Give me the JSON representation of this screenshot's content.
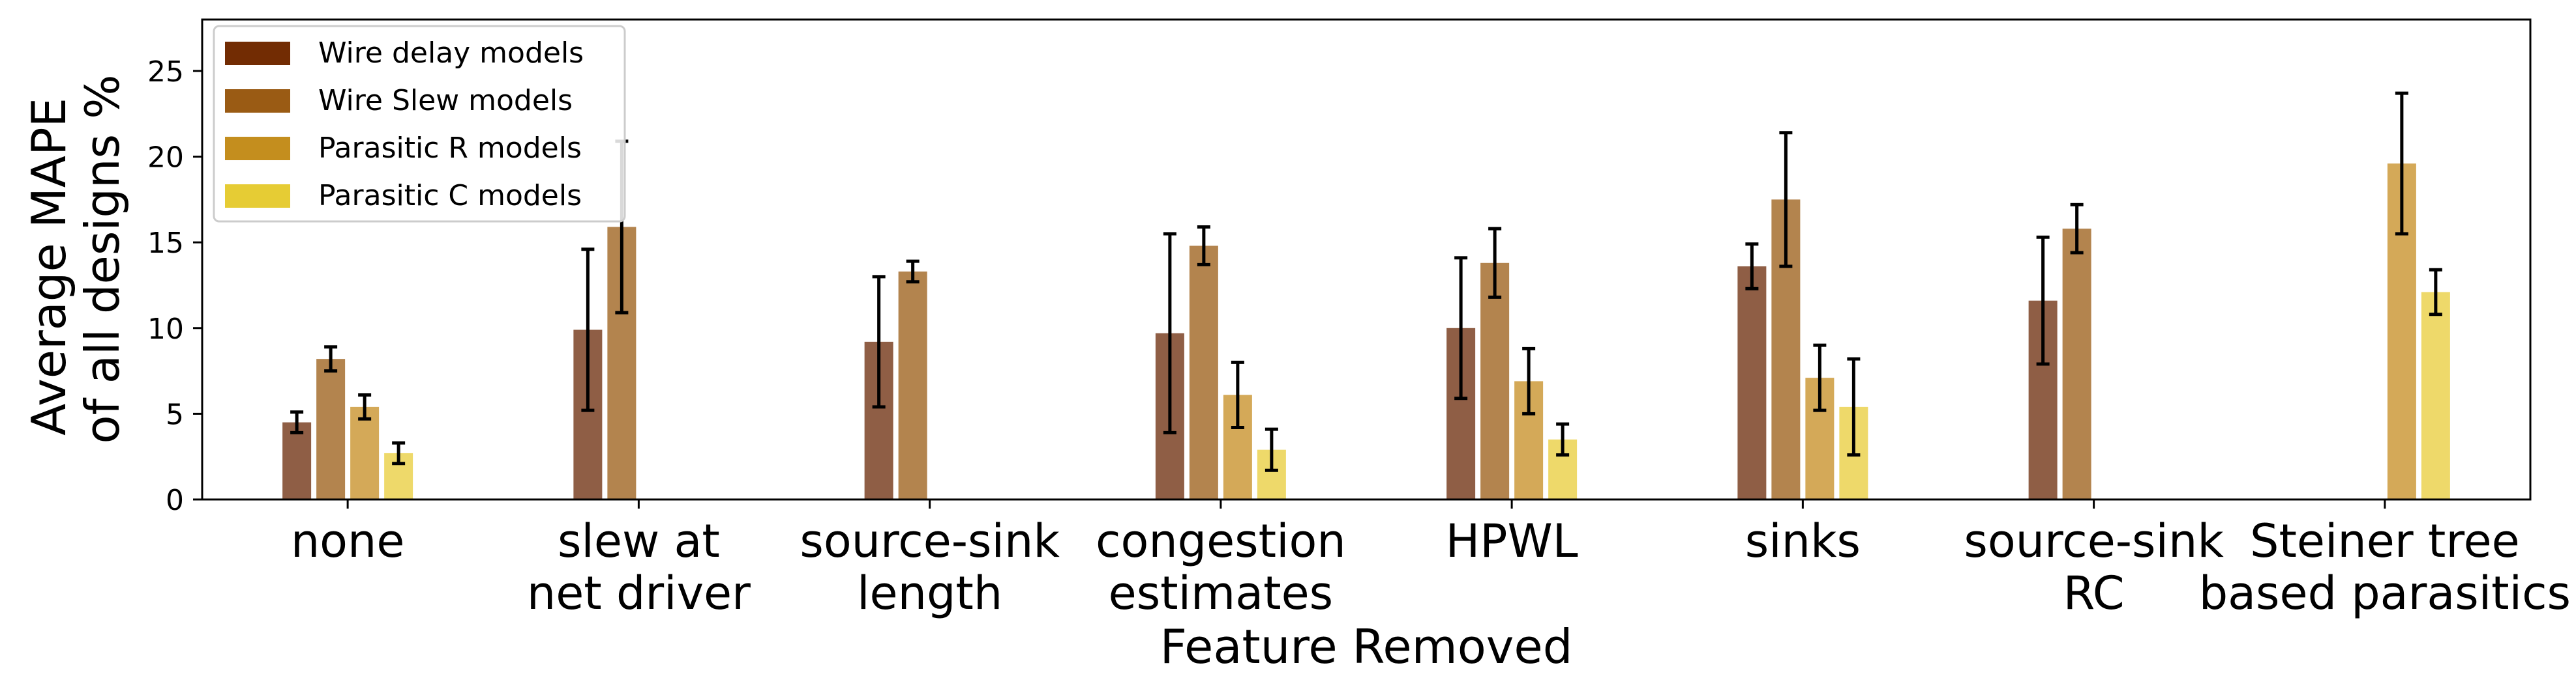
{
  "chart_data": {
    "type": "bar",
    "xlabel": "Feature Removed",
    "ylabel_lines": [
      "Average MAPE",
      "of all designs %"
    ],
    "ylim": [
      0,
      28
    ],
    "yticks": [
      0,
      5,
      10,
      15,
      20,
      25
    ],
    "grid": false,
    "legend_position": "top-left",
    "categories": [
      [
        "none"
      ],
      [
        "slew at",
        "net driver"
      ],
      [
        "source-sink",
        "length"
      ],
      [
        "congestion",
        "estimates"
      ],
      [
        "HPWL"
      ],
      [
        "sinks"
      ],
      [
        "source-sink",
        "RC"
      ],
      [
        "Steiner tree",
        "based parasitics"
      ]
    ],
    "series": [
      {
        "name": "Wire delay models",
        "legend_color": "#722c03",
        "color": "#8f5e45",
        "values": [
          4.5,
          9.9,
          9.2,
          9.7,
          10.0,
          13.6,
          11.6,
          0
        ],
        "errors": [
          0.6,
          4.7,
          3.8,
          5.8,
          4.1,
          1.3,
          3.7,
          0
        ]
      },
      {
        "name": "Wire Slew models",
        "legend_color": "#9a5b14",
        "color": "#b3844e",
        "values": [
          8.2,
          15.9,
          13.3,
          14.8,
          13.8,
          17.5,
          15.8,
          0
        ],
        "errors": [
          0.7,
          5.0,
          0.6,
          1.1,
          2.0,
          3.9,
          1.4,
          0
        ]
      },
      {
        "name": "Parasitic R models",
        "legend_color": "#c48e1e",
        "color": "#d4a958",
        "values": [
          5.4,
          0,
          0,
          6.1,
          6.9,
          7.1,
          0,
          19.6
        ],
        "errors": [
          0.7,
          0,
          0,
          1.9,
          1.9,
          1.9,
          0,
          4.1
        ]
      },
      {
        "name": "Parasitic C models",
        "legend_color": "#e6cc34",
        "color": "#eed96a",
        "values": [
          2.7,
          0,
          0,
          2.9,
          3.5,
          5.4,
          0,
          12.1
        ],
        "errors": [
          0.6,
          0,
          0,
          1.2,
          0.9,
          2.8,
          0,
          1.3
        ]
      }
    ]
  }
}
